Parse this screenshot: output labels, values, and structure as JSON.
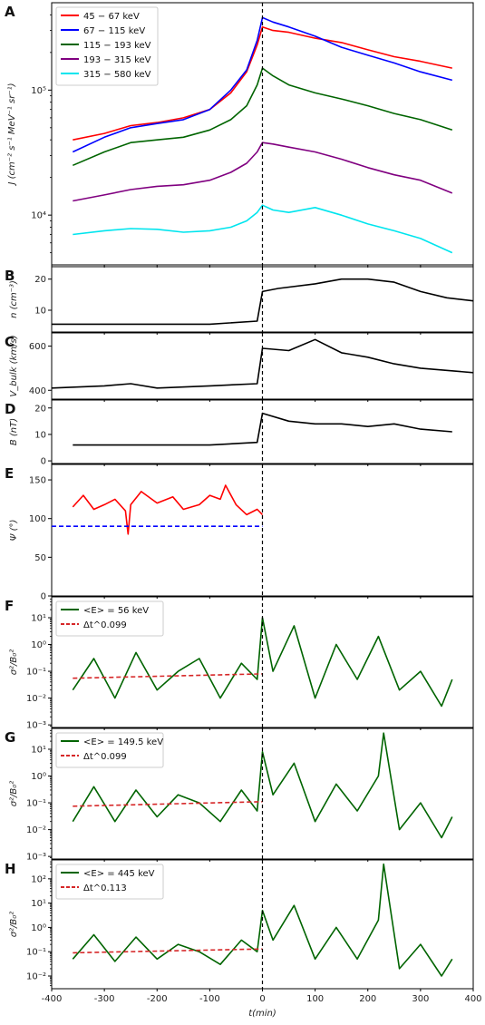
{
  "figure": {
    "xlabel": "t(min)",
    "xlim": [
      -400,
      400
    ],
    "xticks": [
      -400,
      -300,
      -200,
      -100,
      0,
      100,
      200,
      300,
      400
    ],
    "shock_time": 0
  },
  "chart_data": [
    {
      "letter": "A",
      "type": "line",
      "yscale": "log",
      "ylim": [
        4000,
        500000
      ],
      "ylabel": "J (cm⁻² s⁻¹ MeV⁻¹ sr⁻¹)",
      "yticks": [
        {
          "v": 10000,
          "t": "10⁴"
        },
        {
          "v": 100000,
          "t": "10⁵"
        }
      ],
      "legend": "top-left",
      "series": [
        {
          "name": "45 − 67 keV",
          "color": "#ff0000",
          "x": [
            -360,
            -300,
            -250,
            -200,
            -150,
            -100,
            -60,
            -30,
            -10,
            0,
            20,
            50,
            100,
            150,
            200,
            250,
            300,
            360
          ],
          "y": [
            40000,
            45000,
            52000,
            55000,
            60000,
            70000,
            95000,
            140000,
            230000,
            320000,
            300000,
            290000,
            260000,
            240000,
            210000,
            185000,
            170000,
            150000
          ]
        },
        {
          "name": "67 − 115 keV",
          "color": "#0000ff",
          "x": [
            -360,
            -300,
            -250,
            -200,
            -150,
            -100,
            -60,
            -30,
            -10,
            0,
            20,
            50,
            100,
            150,
            200,
            250,
            300,
            360
          ],
          "y": [
            32000,
            42000,
            50000,
            54000,
            58000,
            70000,
            100000,
            145000,
            250000,
            380000,
            350000,
            320000,
            270000,
            220000,
            190000,
            165000,
            140000,
            120000
          ]
        },
        {
          "name": "115 − 193 keV",
          "color": "#006400",
          "x": [
            -360,
            -300,
            -250,
            -200,
            -150,
            -100,
            -60,
            -30,
            -10,
            0,
            20,
            50,
            100,
            150,
            200,
            250,
            300,
            360
          ],
          "y": [
            25000,
            32000,
            38000,
            40000,
            42000,
            48000,
            58000,
            75000,
            110000,
            150000,
            130000,
            110000,
            95000,
            85000,
            75000,
            65000,
            58000,
            48000
          ]
        },
        {
          "name": "193 − 315 keV",
          "color": "#800080",
          "x": [
            -360,
            -300,
            -250,
            -200,
            -150,
            -100,
            -60,
            -30,
            -10,
            0,
            20,
            50,
            100,
            150,
            200,
            250,
            300,
            360
          ],
          "y": [
            13000,
            14500,
            16000,
            17000,
            17500,
            19000,
            22000,
            26000,
            32000,
            38000,
            37000,
            35000,
            32000,
            28000,
            24000,
            21000,
            19000,
            15000
          ]
        },
        {
          "name": "315 − 580 keV",
          "color": "#00e5ee",
          "x": [
            -360,
            -300,
            -250,
            -200,
            -150,
            -100,
            -60,
            -30,
            -10,
            0,
            20,
            50,
            100,
            150,
            200,
            250,
            300,
            360
          ],
          "y": [
            7000,
            7500,
            7800,
            7700,
            7300,
            7500,
            8000,
            9000,
            10500,
            12000,
            11000,
            10500,
            11500,
            10000,
            8500,
            7500,
            6500,
            5000
          ]
        }
      ]
    },
    {
      "letter": "B",
      "type": "line",
      "yscale": "linear",
      "ylim": [
        3,
        24
      ],
      "ylabel": "n (cm⁻³)",
      "yticks": [
        {
          "v": 10,
          "t": "10"
        },
        {
          "v": 20,
          "t": "20"
        }
      ],
      "series": [
        {
          "name": "",
          "color": "#000000",
          "x": [
            -400,
            -300,
            -200,
            -100,
            -10,
            0,
            30,
            100,
            150,
            200,
            250,
            300,
            350,
            400
          ],
          "y": [
            5.5,
            5.5,
            5.5,
            5.5,
            6.5,
            16,
            17,
            18.5,
            20,
            20,
            19,
            16,
            14,
            13
          ]
        }
      ]
    },
    {
      "letter": "C",
      "type": "line",
      "yscale": "linear",
      "ylim": [
        360,
        660
      ],
      "ylabel": "V_bulk (km/s)",
      "yticks": [
        {
          "v": 400,
          "t": "400"
        },
        {
          "v": 600,
          "t": "600"
        }
      ],
      "series": [
        {
          "name": "",
          "color": "#000000",
          "x": [
            -400,
            -300,
            -250,
            -200,
            -100,
            -10,
            0,
            50,
            100,
            150,
            200,
            250,
            300,
            400
          ],
          "y": [
            410,
            420,
            430,
            410,
            420,
            430,
            590,
            580,
            630,
            570,
            550,
            520,
            500,
            480
          ]
        }
      ]
    },
    {
      "letter": "D",
      "type": "line",
      "yscale": "linear",
      "ylim": [
        -1,
        23
      ],
      "ylabel": "B (nT)",
      "yticks": [
        {
          "v": 0,
          "t": "0"
        },
        {
          "v": 10,
          "t": "10"
        },
        {
          "v": 20,
          "t": "20"
        }
      ],
      "series": [
        {
          "name": "",
          "color": "#000000",
          "x": [
            -360,
            -200,
            -100,
            -10,
            0,
            50,
            100,
            150,
            200,
            250,
            300,
            360
          ],
          "y": [
            6,
            6,
            6,
            7,
            18,
            15,
            14,
            14,
            13,
            14,
            12,
            11
          ]
        }
      ]
    },
    {
      "letter": "E",
      "type": "line",
      "yscale": "linear",
      "ylim": [
        0,
        170
      ],
      "ylabel": "Ψ (°)",
      "yticks": [
        {
          "v": 0,
          "t": "0"
        },
        {
          "v": 50,
          "t": "50"
        },
        {
          "v": 100,
          "t": "100"
        },
        {
          "v": 150,
          "t": "150"
        }
      ],
      "series": [
        {
          "name": "",
          "color": "#ff0000",
          "x": [
            -360,
            -340,
            -320,
            -300,
            -280,
            -260,
            -255,
            -250,
            -230,
            -200,
            -170,
            -150,
            -120,
            -100,
            -80,
            -70,
            -50,
            -30,
            -10,
            0
          ],
          "y": [
            115,
            130,
            112,
            118,
            125,
            110,
            80,
            118,
            135,
            120,
            128,
            112,
            118,
            130,
            125,
            143,
            118,
            105,
            112,
            105
          ]
        },
        {
          "name": "",
          "color": "#0000ff",
          "dashed": true,
          "x": [
            -400,
            0
          ],
          "y": [
            90,
            90
          ]
        }
      ]
    },
    {
      "letter": "F",
      "type": "line",
      "yscale": "log",
      "ylim": [
        0.0008,
        60
      ],
      "ylabel": "σ²/B₀²",
      "yticks": [
        {
          "v": 0.001,
          "t": "10⁻³"
        },
        {
          "v": 0.01,
          "t": "10⁻²"
        },
        {
          "v": 0.1,
          "t": "10⁻¹"
        },
        {
          "v": 1,
          "t": "10⁰"
        },
        {
          "v": 10,
          "t": "10¹"
        }
      ],
      "legend": "top-left",
      "series": [
        {
          "name": "<E> = 56 keV",
          "color": "#006400",
          "x": [
            -360,
            -320,
            -280,
            -240,
            -200,
            -160,
            -120,
            -80,
            -40,
            -10,
            0,
            20,
            60,
            100,
            140,
            180,
            220,
            260,
            300,
            340,
            360
          ],
          "y": [
            0.02,
            0.3,
            0.01,
            0.5,
            0.02,
            0.1,
            0.3,
            0.01,
            0.2,
            0.05,
            10,
            0.1,
            5,
            0.01,
            1,
            0.05,
            2,
            0.02,
            0.1,
            0.005,
            0.05
          ]
        },
        {
          "name": "Δt^0.099",
          "color": "#d62728",
          "dashed": true,
          "x": [
            -360,
            0
          ],
          "y": [
            0.055,
            0.08
          ]
        }
      ]
    },
    {
      "letter": "G",
      "type": "line",
      "yscale": "log",
      "ylim": [
        0.0008,
        60
      ],
      "ylabel": "σ²/B₀²",
      "yticks": [
        {
          "v": 0.001,
          "t": "10⁻³"
        },
        {
          "v": 0.01,
          "t": "10⁻²"
        },
        {
          "v": 0.1,
          "t": "10⁻¹"
        },
        {
          "v": 1,
          "t": "10⁰"
        },
        {
          "v": 10,
          "t": "10¹"
        }
      ],
      "legend": "top-left",
      "series": [
        {
          "name": "<E> = 149.5 keV",
          "color": "#006400",
          "x": [
            -360,
            -320,
            -280,
            -240,
            -200,
            -160,
            -120,
            -80,
            -40,
            -10,
            0,
            20,
            60,
            100,
            140,
            180,
            220,
            230,
            260,
            300,
            340,
            360
          ],
          "y": [
            0.02,
            0.4,
            0.02,
            0.3,
            0.03,
            0.2,
            0.1,
            0.02,
            0.3,
            0.05,
            8,
            0.2,
            3,
            0.02,
            0.5,
            0.05,
            1,
            40,
            0.01,
            0.1,
            0.005,
            0.03
          ]
        },
        {
          "name": "Δt^0.099",
          "color": "#d62728",
          "dashed": true,
          "x": [
            -360,
            0
          ],
          "y": [
            0.075,
            0.11
          ]
        }
      ]
    },
    {
      "letter": "H",
      "type": "line",
      "yscale": "log",
      "ylim": [
        0.003,
        600
      ],
      "ylabel": "σ²/B₀²",
      "yticks": [
        {
          "v": 0.01,
          "t": "10⁻²"
        },
        {
          "v": 0.1,
          "t": "10⁻¹"
        },
        {
          "v": 1,
          "t": "10⁰"
        },
        {
          "v": 10,
          "t": "10¹"
        },
        {
          "v": 100,
          "t": "10²"
        }
      ],
      "legend": "top-left",
      "series": [
        {
          "name": "<E> = 445 keV",
          "color": "#006400",
          "x": [
            -360,
            -320,
            -280,
            -240,
            -200,
            -160,
            -120,
            -80,
            -40,
            -10,
            0,
            20,
            60,
            100,
            140,
            180,
            220,
            230,
            260,
            300,
            340,
            360
          ],
          "y": [
            0.05,
            0.5,
            0.04,
            0.4,
            0.05,
            0.2,
            0.1,
            0.03,
            0.3,
            0.1,
            5,
            0.3,
            8,
            0.05,
            1,
            0.05,
            2,
            400,
            0.02,
            0.2,
            0.01,
            0.05
          ]
        },
        {
          "name": "Δt^0.113",
          "color": "#d62728",
          "dashed": true,
          "x": [
            -360,
            0
          ],
          "y": [
            0.09,
            0.13
          ]
        }
      ]
    }
  ]
}
